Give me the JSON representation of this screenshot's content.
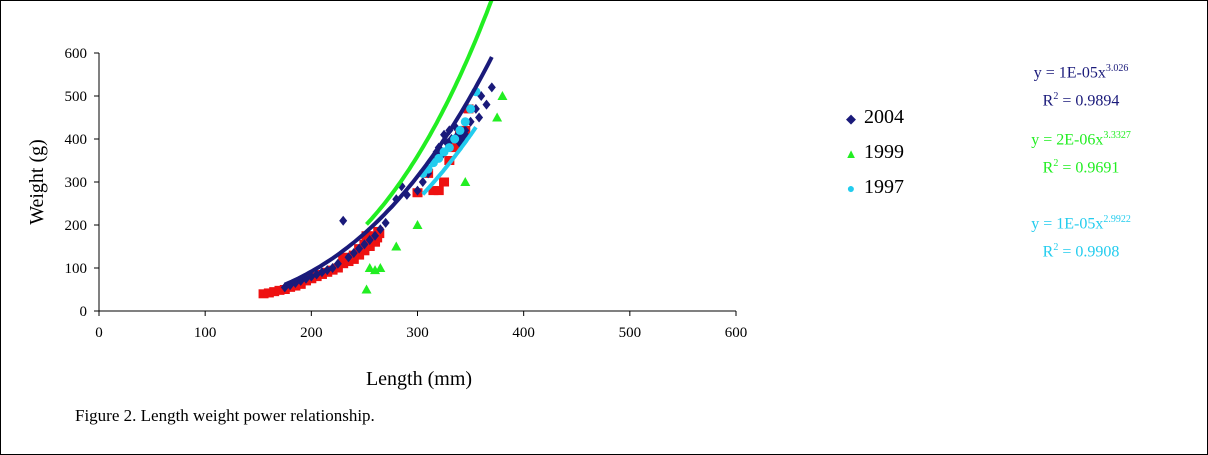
{
  "caption": "Figure 2. Length weight power relationship.",
  "legend": [
    {
      "label": "2004",
      "marker": "diamond",
      "color": "#1a1a7a"
    },
    {
      "label": "1999",
      "marker": "triangle",
      "color": "#22ee22"
    },
    {
      "label": "1997",
      "marker": "circle",
      "color": "#22ccee"
    }
  ],
  "equations": [
    {
      "eq_prefix": "y = 1E-05x",
      "exponent": "3.026",
      "r2_prefix": "R",
      "r2_sup": "2",
      "r2_value": " = 0.9894",
      "color": "#1a1a7a"
    },
    {
      "eq_prefix": "y = 2E-06x",
      "exponent": "3.3327",
      "r2_prefix": "R",
      "r2_sup": "2",
      "r2_value": " = 0.9691",
      "color": "#22ee22"
    },
    {
      "eq_prefix": "y = 1E-05x",
      "exponent": "2.9922",
      "r2_prefix": "R",
      "r2_sup": "2",
      "r2_value": " = 0.9908",
      "color": "#22ccee"
    }
  ],
  "chart_data": {
    "type": "scatter",
    "xlabel": "Length (mm)",
    "ylabel": "Weight (g)",
    "xlim": [
      0,
      600
    ],
    "ylim": [
      0,
      600
    ],
    "xticks": [
      0,
      100,
      200,
      300,
      400,
      500,
      600
    ],
    "yticks": [
      0,
      100,
      200,
      300,
      400,
      500,
      600
    ],
    "grid": false,
    "legend_position": "right",
    "series": [
      {
        "name": "2004",
        "marker": "diamond",
        "color": "#1a1a7a",
        "points": [
          [
            175,
            55
          ],
          [
            180,
            60
          ],
          [
            185,
            65
          ],
          [
            190,
            70
          ],
          [
            195,
            75
          ],
          [
            200,
            80
          ],
          [
            205,
            85
          ],
          [
            210,
            90
          ],
          [
            215,
            95
          ],
          [
            220,
            100
          ],
          [
            225,
            110
          ],
          [
            230,
            210
          ],
          [
            235,
            125
          ],
          [
            240,
            135
          ],
          [
            245,
            145
          ],
          [
            250,
            155
          ],
          [
            255,
            165
          ],
          [
            260,
            175
          ],
          [
            265,
            190
          ],
          [
            270,
            205
          ],
          [
            280,
            260
          ],
          [
            285,
            290
          ],
          [
            290,
            270
          ],
          [
            300,
            280
          ],
          [
            305,
            300
          ],
          [
            310,
            320
          ],
          [
            315,
            350
          ],
          [
            318,
            370
          ],
          [
            320,
            380
          ],
          [
            322,
            360
          ],
          [
            325,
            410
          ],
          [
            328,
            390
          ],
          [
            330,
            420
          ],
          [
            332,
            400
          ],
          [
            335,
            430
          ],
          [
            338,
            410
          ],
          [
            340,
            390
          ],
          [
            342,
            400
          ],
          [
            345,
            420
          ],
          [
            350,
            440
          ],
          [
            355,
            470
          ],
          [
            358,
            450
          ],
          [
            360,
            500
          ],
          [
            365,
            480
          ],
          [
            370,
            520
          ],
          [
            345,
            410
          ]
        ],
        "fit": {
          "a": 1e-05,
          "b": 3.026,
          "xmin": 175,
          "xmax": 370
        }
      },
      {
        "name": "1999",
        "marker": "triangle",
        "color": "#22ee22",
        "points": [
          [
            252,
            50
          ],
          [
            255,
            100
          ],
          [
            260,
            95
          ],
          [
            265,
            100
          ],
          [
            280,
            150
          ],
          [
            300,
            200
          ],
          [
            345,
            300
          ],
          [
            375,
            450
          ],
          [
            380,
            500
          ]
        ],
        "fit": {
          "a": 2e-06,
          "b": 3.3327,
          "xmin": 252,
          "xmax": 380
        }
      },
      {
        "name": "1997",
        "marker": "circle",
        "color": "#22ccee",
        "points": [
          [
            305,
            320
          ],
          [
            310,
            330
          ],
          [
            315,
            345
          ],
          [
            320,
            355
          ],
          [
            325,
            370
          ],
          [
            330,
            380
          ],
          [
            335,
            400
          ],
          [
            340,
            420
          ],
          [
            345,
            440
          ],
          [
            350,
            470
          ],
          [
            355,
            510
          ]
        ],
        "fit": {
          "a": 1e-05,
          "b": 2.9922,
          "xmin": 305,
          "xmax": 355
        }
      },
      {
        "name": "",
        "marker": "square",
        "color": "#ee1111",
        "points": [
          [
            155,
            40
          ],
          [
            160,
            42
          ],
          [
            165,
            45
          ],
          [
            170,
            48
          ],
          [
            175,
            50
          ],
          [
            180,
            55
          ],
          [
            185,
            58
          ],
          [
            190,
            62
          ],
          [
            195,
            70
          ],
          [
            200,
            75
          ],
          [
            205,
            80
          ],
          [
            210,
            85
          ],
          [
            215,
            90
          ],
          [
            220,
            95
          ],
          [
            225,
            100
          ],
          [
            230,
            110
          ],
          [
            235,
            115
          ],
          [
            240,
            120
          ],
          [
            245,
            130
          ],
          [
            250,
            140
          ],
          [
            255,
            150
          ],
          [
            260,
            160
          ],
          [
            262,
            170
          ],
          [
            264,
            180
          ],
          [
            230,
            125
          ],
          [
            240,
            130
          ],
          [
            250,
            155
          ],
          [
            255,
            165
          ],
          [
            260,
            175
          ],
          [
            263,
            185
          ],
          [
            315,
            280
          ],
          [
            320,
            280
          ],
          [
            325,
            300
          ],
          [
            300,
            275
          ],
          [
            330,
            350
          ],
          [
            335,
            380
          ],
          [
            340,
            410
          ],
          [
            345,
            420
          ],
          [
            348,
            470
          ],
          [
            310,
            320
          ],
          [
            252,
            175
          ],
          [
            245,
            145
          ]
        ]
      }
    ]
  }
}
